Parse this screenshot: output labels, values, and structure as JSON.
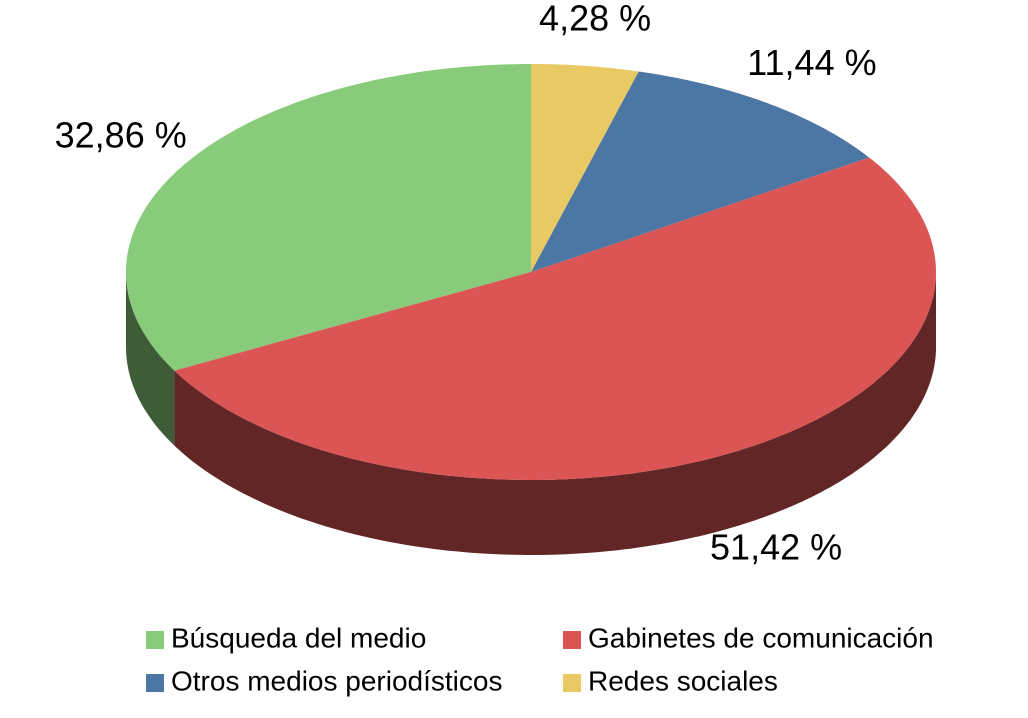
{
  "chart_data": {
    "type": "pie",
    "categories": [
      "Búsqueda del medio",
      "Gabinetes de comunicación",
      "Otros medios periodísticos",
      "Redes sociales"
    ],
    "values": [
      32.86,
      51.42,
      11.44,
      4.28
    ],
    "value_labels": [
      "32,86 %",
      "51,42 %",
      "11,44 %",
      "4,28 %"
    ],
    "colors": [
      "#88cc7b",
      "#db5555",
      "#4c77a5",
      "#e8c963"
    ],
    "legend": "bottom"
  }
}
